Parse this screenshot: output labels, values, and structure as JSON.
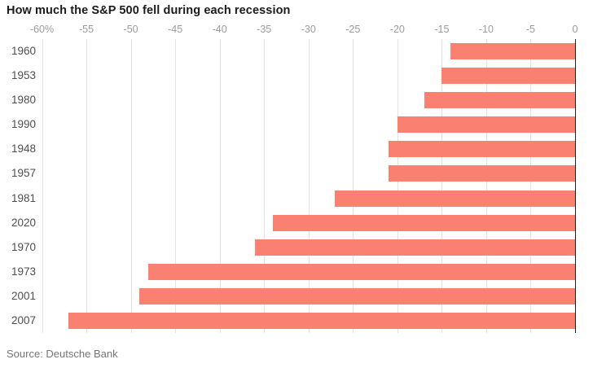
{
  "title": "How much the S&P 500 fell during each recession",
  "source": "Source: Deutsche Bank",
  "colors": {
    "bar": "#fa8072",
    "gridline": "#e3e3e3",
    "zero_axis": "#222222",
    "tick_label": "#9b9b9b",
    "year_label": "#4f4f4f",
    "title": "#1b1b1b",
    "source": "#757575",
    "background": "#ffffff"
  },
  "chart_data": {
    "type": "bar",
    "orientation": "horizontal",
    "title": "How much the S&P 500 fell during each recession",
    "xlabel": "",
    "ylabel": "",
    "categories": [
      "1960",
      "1953",
      "1980",
      "1990",
      "1948",
      "1957",
      "1981",
      "2020",
      "1970",
      "1973",
      "2001",
      "2007"
    ],
    "values": [
      -14,
      -15,
      -17,
      -20,
      -21,
      -21,
      -27,
      -34,
      -36,
      -48,
      -49,
      -57
    ],
    "unit": "percent",
    "xlim": [
      -60,
      0
    ],
    "xticks": [
      -60,
      -55,
      -50,
      -45,
      -40,
      -35,
      -30,
      -25,
      -20,
      -15,
      -10,
      -5,
      0
    ],
    "xtick_labels": [
      "-60%",
      "-55",
      "-50",
      "-45",
      "-40",
      "-35",
      "-30",
      "-25",
      "-20",
      "-15",
      "-10",
      "-5",
      "0"
    ],
    "grid": "vertical",
    "legend": "none",
    "bars_anchored_at": 0
  }
}
